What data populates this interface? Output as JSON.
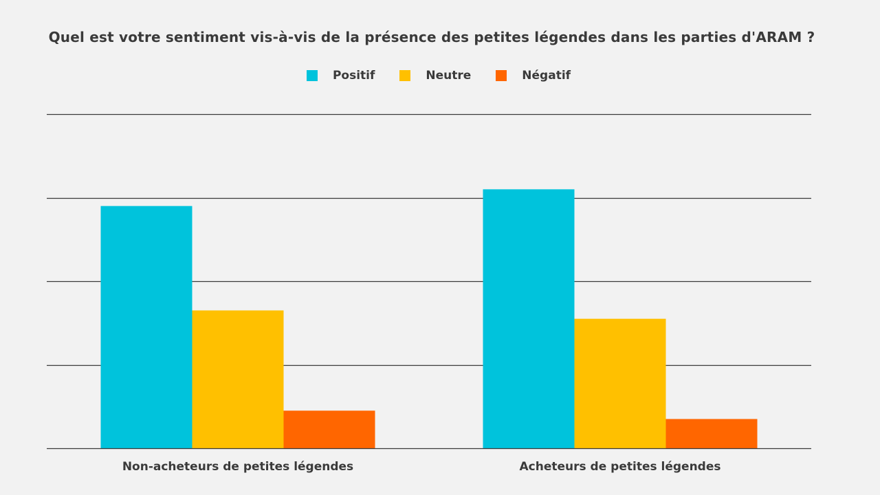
{
  "chart_data": {
    "type": "bar",
    "title": "Quel est votre sentiment vis-à-vis de la présence des petites légendes dans les parties d'ARAM ?",
    "categories": [
      "Non-acheteurs de petites légendes",
      "Acheteurs de petites légendes"
    ],
    "series": [
      {
        "name": "Positif",
        "color": "#00c3dc",
        "values": [
          0.58,
          0.62
        ]
      },
      {
        "name": "Neutre",
        "color": "#ffc000",
        "values": [
          0.33,
          0.31
        ]
      },
      {
        "name": "Négatif",
        "color": "#ff6600",
        "values": [
          0.09,
          0.07
        ]
      }
    ],
    "ylim": [
      0,
      0.8
    ],
    "y_gridlines": [
      0,
      0.2,
      0.4,
      0.6,
      0.8
    ],
    "show_y_tick_labels": false,
    "legend_position": "top-center",
    "grid": true
  }
}
